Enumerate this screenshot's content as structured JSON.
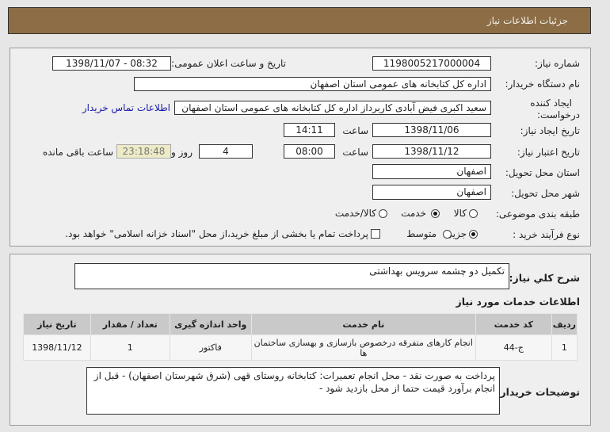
{
  "header": {
    "title": "جزئیات اطلاعات نیاز"
  },
  "form": {
    "need_number_label": "شماره نیاز:",
    "need_number": "1198005217000004",
    "announce_label": "تاریخ و ساعت اعلان عمومی:",
    "announce_value": "1398/11/07 - 08:32",
    "buyer_org_label": "نام دستگاه خریدار:",
    "buyer_org": "اداره کل کتابخانه های عمومی استان اصفهان",
    "creator_label_1": "ایجاد کننده",
    "creator_label_2": "درخواست:",
    "creator": "سعید اکبری فیض آبادی کاربرداز اداره کل کتابخانه های عمومی استان اصفهان",
    "contact_link": "اطلاعات تماس خریدار",
    "created_date_label": "تاریخ ایجاد نیاز:",
    "created_date": "1398/11/06",
    "time_label": "ساعت",
    "created_time": "14:11",
    "validity_label": "تاریخ اعتبار نیاز:",
    "validity_date": "1398/11/12",
    "validity_time": "08:00",
    "days": "4",
    "days_label": "روز و",
    "remaining": "23:18:48",
    "remaining_label": "ساعت باقی مانده",
    "province_label": "استان محل تحویل:",
    "province": "اصفهان",
    "city_label": "شهر محل تحویل:",
    "city": "اصفهان",
    "category_label": "طبقه بندی موضوعی:",
    "category_options": [
      {
        "label": "کالا",
        "selected": false
      },
      {
        "label": "خدمت",
        "selected": true
      },
      {
        "label": "کالا/خدمت",
        "selected": false
      }
    ],
    "process_label": "نوع فرآیند خرید :",
    "process_options": [
      {
        "label": "جزیی",
        "selected": true
      },
      {
        "label": "متوسط",
        "selected": false
      }
    ],
    "payment_checkbox": {
      "label": "پرداخت تمام یا بخشی از مبلغ خرید،از محل \"اسناد خزانه اسلامی\" خواهد بود.",
      "checked": false
    }
  },
  "details": {
    "desc_label": "شرح کلي نياز:",
    "desc": "تکمیل دو چشمه سرویس بهداشتی",
    "services_title": "اطلاعات خدمات مورد نیاز",
    "table": {
      "headers": [
        "ردیف",
        "کد خدمت",
        "نام خدمت",
        "واحد اندازه گیری",
        "تعداد / مقدار",
        "تاریخ نیاز"
      ],
      "rows": [
        [
          "1",
          "ج-44",
          "انجام کارهای متفرقه درخصوص بازسازی و بهسازی ساختمان ها",
          "فاکتور",
          "1",
          "1398/11/12"
        ]
      ]
    },
    "notes_label": "توضیحات خریدار:",
    "notes": "پرداخت به صورت نقد - محل انجام تعمیرات: کتابخانه روستای قهی (شرق شهرستان اصفهان) - قبل از انجام برآورد قیمت حتما از محل بازدید شود -"
  }
}
